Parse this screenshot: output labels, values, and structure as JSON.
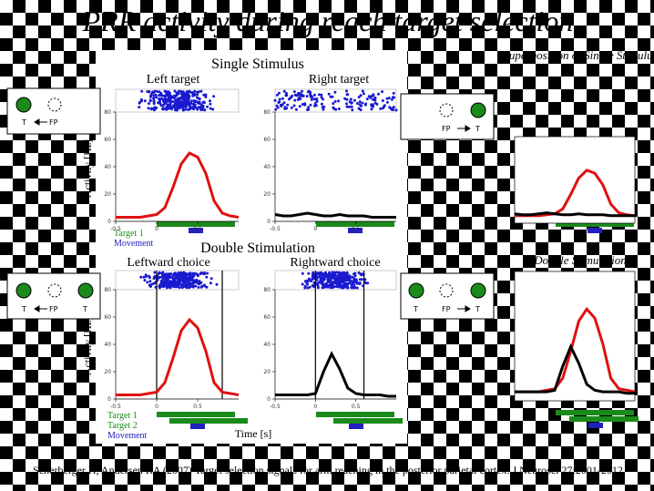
{
  "title": "PRR activity during reach target selection",
  "side_labels": [
    "Superposition of Single Stimulus",
    "Double Stimulation"
  ],
  "panel_headings": {
    "single": "Single Stimulus",
    "double": "Double Stimulation"
  },
  "y_axis_label": "Activity [Hz]",
  "x_axis_label": "Time [s]",
  "icon_labels": {
    "t": "T",
    "fp": "FP"
  },
  "event_labels": {
    "target1": "Target 1",
    "target2": "Target 2",
    "movement": "Movement"
  },
  "citation": "Scherberger H, Andersen RA (2007) Target selection signals for arm reaching in the posterior parietal cortex. J Neurosci 27:2001-2012",
  "chart_data": [
    {
      "type": "line",
      "title": "Left target",
      "x": [
        -0.5,
        -0.4,
        -0.3,
        -0.2,
        -0.1,
        0,
        0.1,
        0.2,
        0.3,
        0.4,
        0.5,
        0.6,
        0.7,
        0.8,
        0.9,
        1.0
      ],
      "xlim": [
        -0.5,
        1.0
      ],
      "xticks": [
        -0.5,
        0,
        0.5
      ],
      "ylim": [
        0,
        80
      ],
      "yticks": [
        0,
        20,
        40,
        60,
        80
      ],
      "series": [
        {
          "color": "#e01010",
          "values": [
            3,
            3,
            3,
            3,
            4,
            5,
            10,
            25,
            42,
            50,
            47,
            35,
            15,
            6,
            4,
            3
          ]
        }
      ]
    },
    {
      "type": "line",
      "title": "Right target",
      "x": [
        -0.5,
        -0.4,
        -0.3,
        -0.2,
        -0.1,
        0,
        0.1,
        0.2,
        0.3,
        0.4,
        0.5,
        0.6,
        0.7,
        0.8,
        0.9,
        1.0
      ],
      "xlim": [
        -0.5,
        1.0
      ],
      "xticks": [
        -0.5,
        0,
        0.5
      ],
      "ylim": [
        0,
        80
      ],
      "yticks": [
        0,
        20,
        40,
        60,
        80
      ],
      "series": [
        {
          "color": "#000000",
          "values": [
            5,
            4,
            4,
            5,
            6,
            5,
            4,
            4,
            5,
            4,
            4,
            4,
            3,
            3,
            3,
            3
          ]
        }
      ]
    },
    {
      "type": "line",
      "title": "Leftward choice",
      "x": [
        -0.5,
        -0.4,
        -0.3,
        -0.2,
        -0.1,
        0,
        0.1,
        0.2,
        0.3,
        0.4,
        0.5,
        0.6,
        0.7,
        0.8,
        0.9,
        1.0
      ],
      "xlim": [
        -0.5,
        1.0
      ],
      "xticks": [
        -0.5,
        0,
        0.5
      ],
      "ylim": [
        0,
        80
      ],
      "yticks": [
        0,
        20,
        40,
        60,
        80
      ],
      "series": [
        {
          "color": "#e01010",
          "values": [
            3,
            3,
            3,
            3,
            4,
            5,
            12,
            30,
            50,
            58,
            52,
            35,
            12,
            5,
            4,
            3
          ]
        }
      ]
    },
    {
      "type": "line",
      "title": "Rightward choice",
      "x": [
        -0.5,
        -0.4,
        -0.3,
        -0.2,
        -0.1,
        0,
        0.1,
        0.2,
        0.3,
        0.4,
        0.5,
        0.6,
        0.7,
        0.8,
        0.9,
        1.0
      ],
      "xlim": [
        -0.5,
        1.0
      ],
      "xticks": [
        -0.5,
        0,
        0.5
      ],
      "ylim": [
        0,
        80
      ],
      "yticks": [
        0,
        20,
        40,
        60,
        80
      ],
      "series": [
        {
          "color": "#000000",
          "values": [
            3,
            3,
            3,
            3,
            3,
            4,
            20,
            33,
            22,
            8,
            4,
            3,
            3,
            3,
            2,
            2
          ]
        }
      ]
    }
  ]
}
